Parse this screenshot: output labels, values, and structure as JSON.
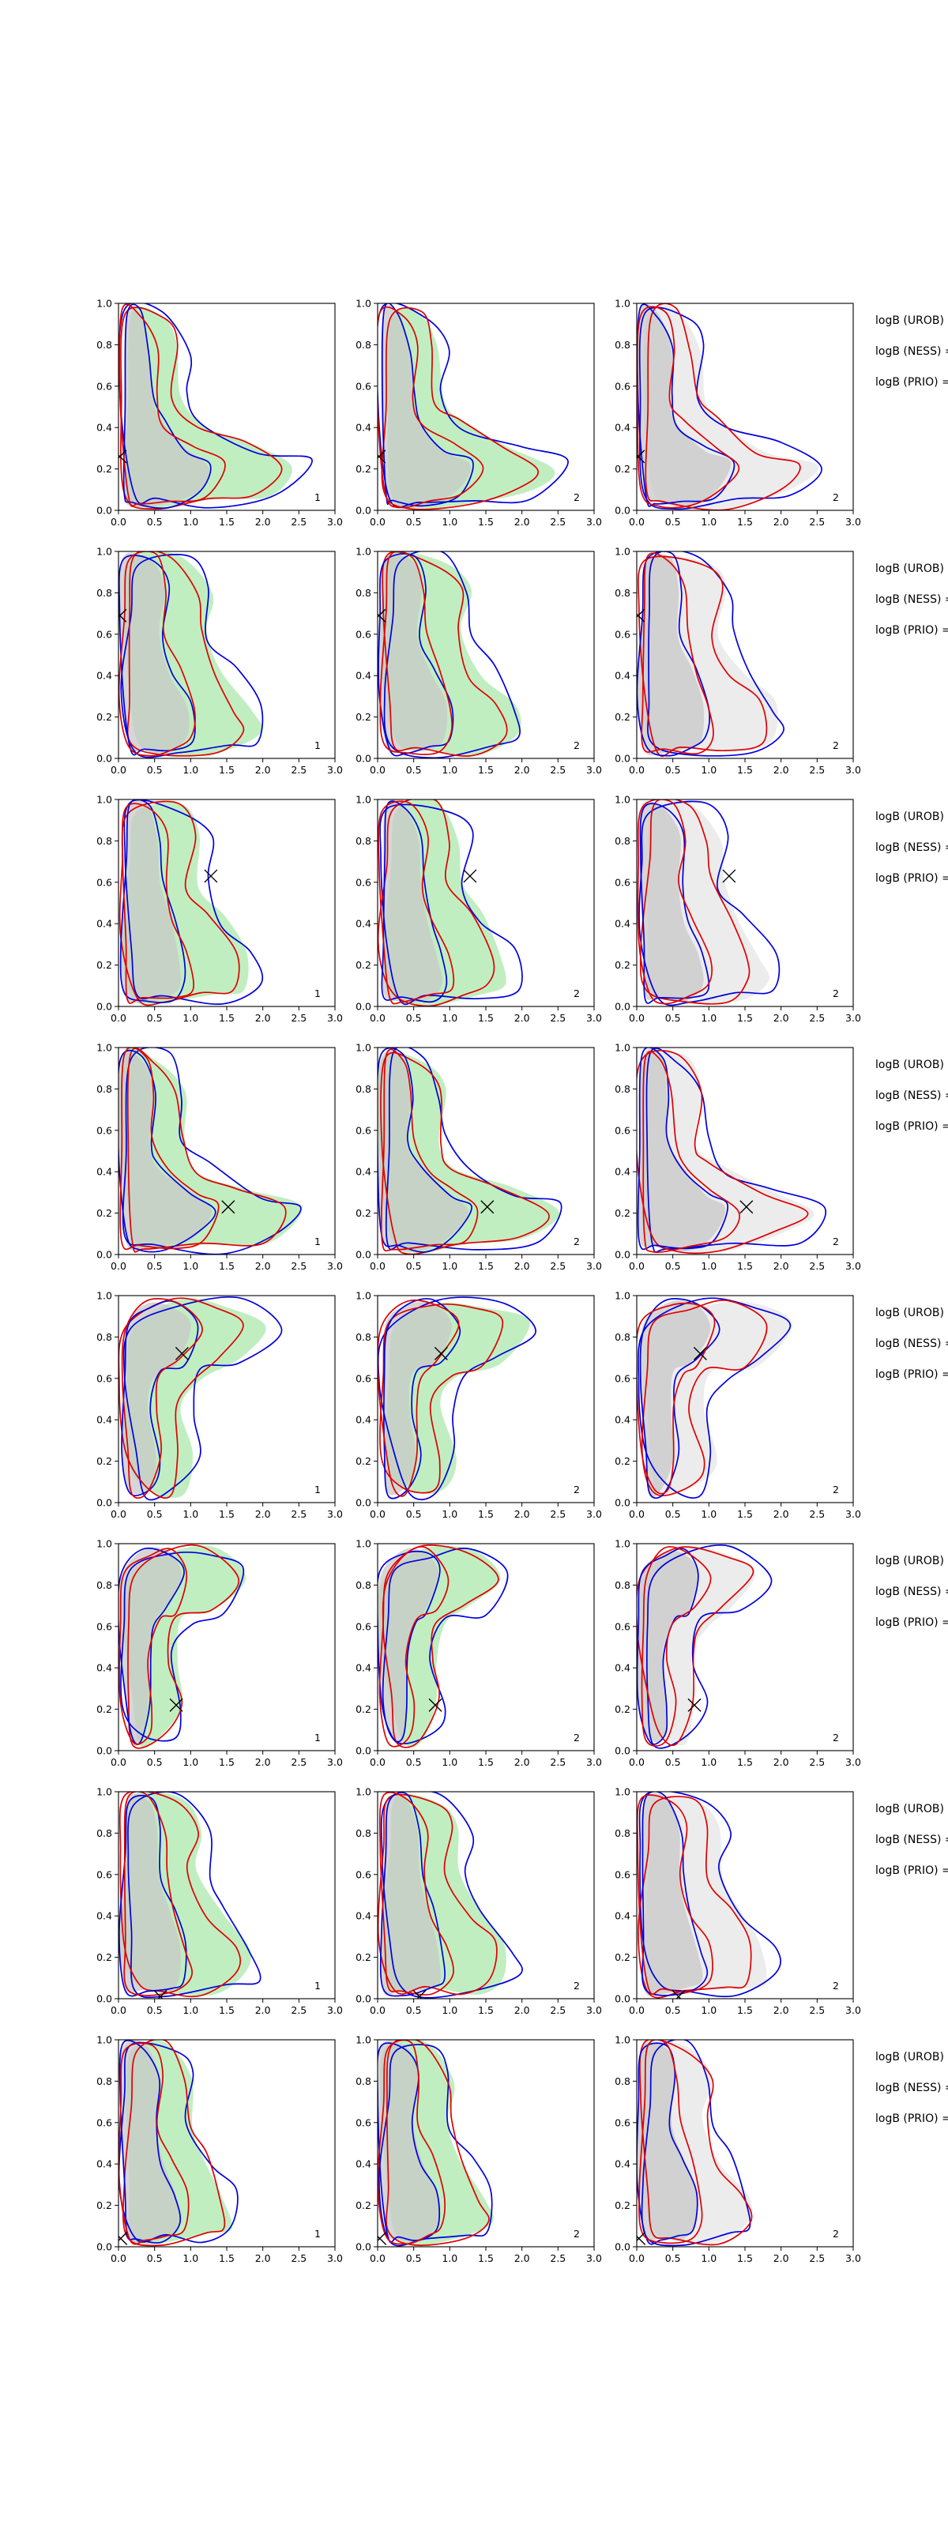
{
  "figure": {
    "rows": 8,
    "columns": 3,
    "xlim": [
      0.0,
      3.0
    ],
    "ylim": [
      0.0,
      1.0
    ],
    "x_ticks": [
      "0.0",
      "0.5",
      "1.0",
      "1.5",
      "2.0",
      "2.5",
      "3.0"
    ],
    "y_ticks": [
      "0.0",
      "0.2",
      "0.4",
      "0.6",
      "0.8",
      "1.0"
    ],
    "panel_numbers": [
      "1",
      "2",
      "2"
    ],
    "side_labels": [
      "logB (UROB) =",
      "logB (NESS) =",
      "logB (PRIO) ="
    ],
    "colors": {
      "red_contour": "#e00000",
      "blue_contour": "#0000dd",
      "green_fill": "#b6ebb6",
      "grey_fill": "#c8c8c8",
      "marker": "#000000"
    }
  },
  "chart_data": [
    {
      "type": "contour",
      "row": 1,
      "shape": "L",
      "marker": {
        "x": 0.02,
        "y": 0.26
      },
      "red_extent_x": 2.3,
      "blue_extent_x": 2.6
    },
    {
      "type": "contour",
      "row": 2,
      "shape": "column",
      "marker": {
        "x": 0.02,
        "y": 0.69
      },
      "red_extent_x": 1.7,
      "blue_extent_x": 2.0
    },
    {
      "type": "contour",
      "row": 3,
      "shape": "column",
      "marker": {
        "x": 1.28,
        "y": 0.63
      },
      "red_extent_x": 1.6,
      "blue_extent_x": 1.9
    },
    {
      "type": "contour",
      "row": 4,
      "shape": "L",
      "marker": {
        "x": 1.52,
        "y": 0.23
      },
      "red_extent_x": 2.3,
      "blue_extent_x": 2.6
    },
    {
      "type": "contour",
      "row": 5,
      "shape": "hook",
      "marker": {
        "x": 0.88,
        "y": 0.72
      },
      "red_extent_x": 1.8,
      "blue_extent_x": 2.2
    },
    {
      "type": "contour",
      "row": 6,
      "shape": "hook",
      "marker": {
        "x": 0.8,
        "y": 0.22
      },
      "red_extent_x": 1.6,
      "blue_extent_x": 1.8
    },
    {
      "type": "contour",
      "row": 7,
      "shape": "column",
      "marker": {
        "x": 0.58,
        "y": 0.01
      },
      "red_extent_x": 1.6,
      "blue_extent_x": 1.9
    },
    {
      "type": "contour",
      "row": 8,
      "shape": "column",
      "marker": {
        "x": 0.03,
        "y": 0.04
      },
      "red_extent_x": 1.5,
      "blue_extent_x": 1.6
    }
  ]
}
